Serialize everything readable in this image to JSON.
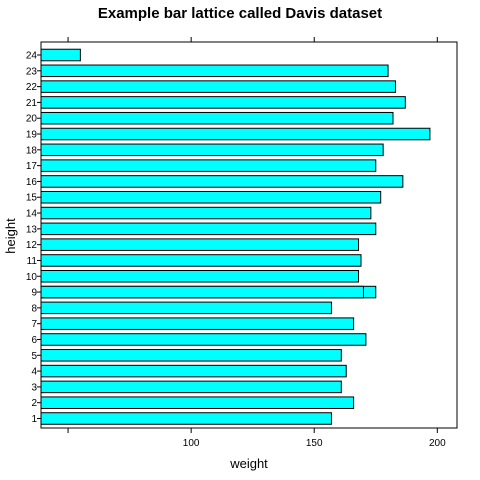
{
  "chart_data": {
    "type": "bar",
    "orientation": "horizontal",
    "title": "Example bar lattice called Davis dataset",
    "xlabel": "weight",
    "ylabel": "height",
    "xlim": [
      39,
      208
    ],
    "xticks": [
      50,
      100,
      150,
      200
    ],
    "xtick_labels": [
      "",
      "100",
      "150",
      "200"
    ],
    "categories": [
      "1",
      "2",
      "3",
      "4",
      "5",
      "6",
      "7",
      "8",
      "9",
      "10",
      "11",
      "12",
      "13",
      "14",
      "15",
      "16",
      "17",
      "18",
      "19",
      "20",
      "21",
      "22",
      "23",
      "24"
    ],
    "values": [
      157,
      166,
      161,
      163,
      161,
      171,
      166,
      157,
      175,
      168,
      169,
      168,
      175,
      173,
      177,
      186,
      175,
      178,
      197,
      182,
      187,
      183,
      180,
      55
    ],
    "overlay_bars": [
      {
        "category": "9",
        "value": 170
      }
    ],
    "bar_color": "#00ffff",
    "edge_color": "#000000",
    "grid": false,
    "ticks_on_top": true
  }
}
